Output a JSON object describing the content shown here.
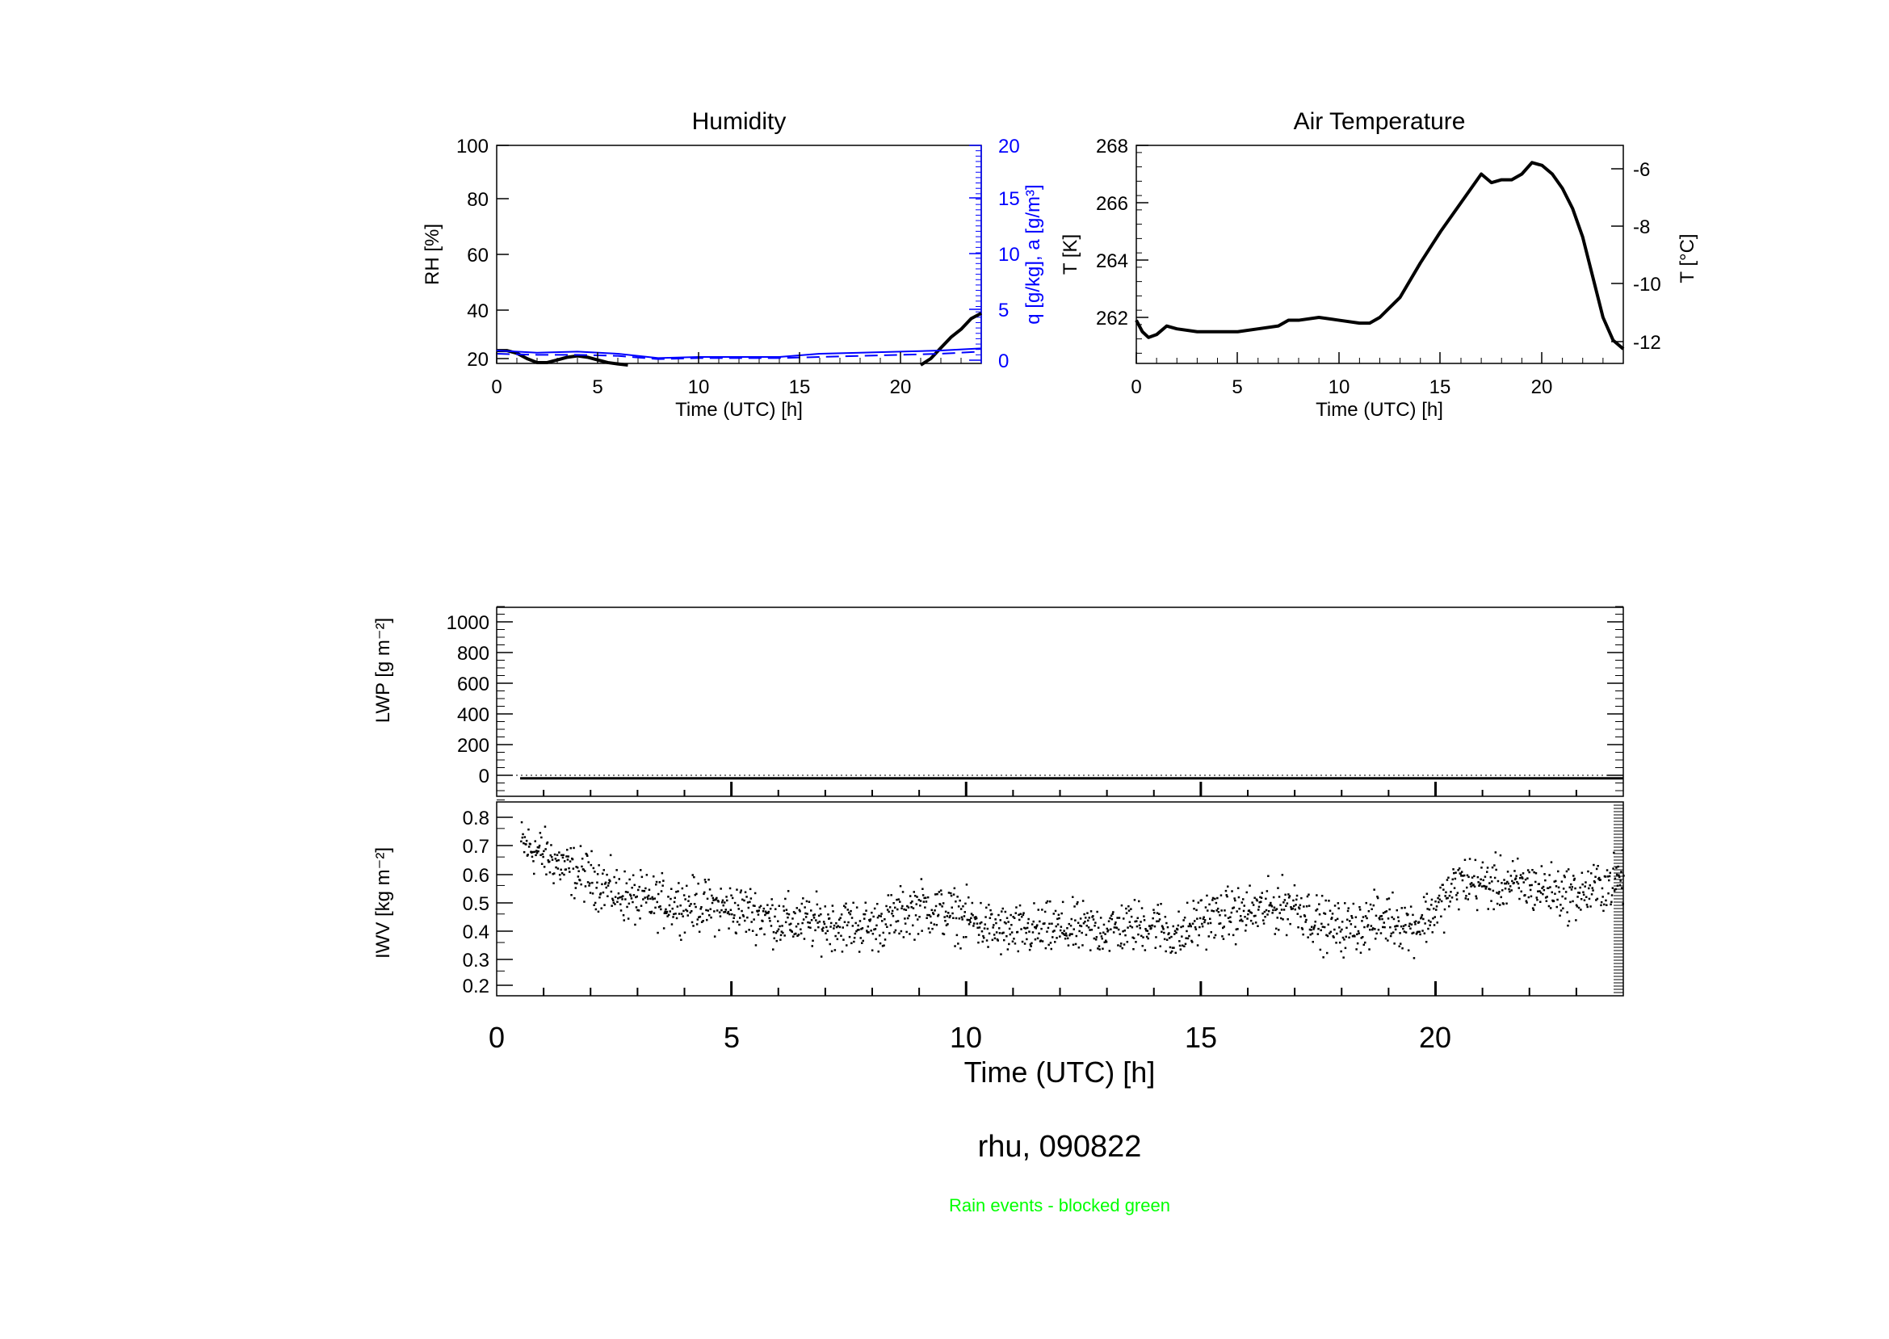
{
  "footer": {
    "site_date": "rhu, 090822",
    "rain_note": "Rain events - blocked green"
  },
  "colors": {
    "axis": "#000000",
    "secondary_axis": "#0000ff",
    "rain_note": "#00ff00"
  },
  "chart_data": [
    {
      "id": "humidity",
      "type": "line",
      "title": "Humidity",
      "xlabel": "Time (UTC) [h]",
      "ylabel": "RH [%]",
      "ylabel_right": "q [g/kg], a [g/m³]",
      "xlim": [
        0,
        24
      ],
      "ylim": [
        18,
        100
      ],
      "ylim_right": [
        0,
        20
      ],
      "x_ticks": [
        "0",
        "5",
        "10",
        "15",
        "20"
      ],
      "y_ticks": [
        "20",
        "40",
        "60",
        "80",
        "100"
      ],
      "y_ticks_right": [
        "0",
        "5",
        "10",
        "15",
        "20"
      ],
      "series": [
        {
          "axis": "left",
          "color": "#000000",
          "style": "solid",
          "x": [
            0,
            0.5,
            1,
            1.5,
            2,
            2.5,
            3,
            3.5,
            4,
            4.5,
            5,
            5.5,
            6,
            6.5,
            21,
            21.5,
            22,
            22.5,
            23,
            23.5,
            24
          ],
          "values": [
            23,
            23,
            22,
            20,
            18.5,
            18.5,
            19.5,
            20.5,
            21,
            20.5,
            19.5,
            18.5,
            18,
            17.5,
            17.5,
            20,
            24,
            28,
            31,
            35,
            37
          ]
        },
        {
          "axis": "right",
          "color": "#0000ff",
          "style": "solid",
          "x": [
            0,
            2,
            4,
            6,
            8,
            10,
            12,
            14,
            16,
            18,
            20,
            22,
            24
          ],
          "values": [
            0.9,
            0.7,
            0.8,
            0.6,
            0.2,
            0.3,
            0.3,
            0.3,
            0.6,
            0.7,
            0.8,
            0.9,
            1.1
          ]
        },
        {
          "axis": "right",
          "color": "#0000ff",
          "style": "dashed",
          "x": [
            0,
            2,
            4,
            6,
            8,
            10,
            12,
            14,
            16,
            18,
            20,
            22,
            24
          ],
          "values": [
            0.6,
            0.5,
            0.5,
            0.4,
            0.1,
            0.2,
            0.2,
            0.2,
            0.3,
            0.4,
            0.5,
            0.6,
            0.8
          ]
        }
      ]
    },
    {
      "id": "air_temperature",
      "type": "line",
      "title": "Air Temperature",
      "xlabel": "Time (UTC) [h]",
      "ylabel": "T [K]",
      "ylabel_right": "T [°C]",
      "xlim": [
        0,
        24
      ],
      "ylim": [
        260.6,
        268.2
      ],
      "ylim_right": [
        -12.55,
        -4.95
      ],
      "x_ticks": [
        "0",
        "5",
        "10",
        "15",
        "20"
      ],
      "y_ticks": [
        "262",
        "264",
        "266",
        "268"
      ],
      "y_ticks_right": [
        "-12",
        "-10",
        "-8",
        "-6"
      ],
      "series": [
        {
          "axis": "left",
          "color": "#000000",
          "style": "solid",
          "x": [
            0,
            0.3,
            0.6,
            1,
            1.5,
            2,
            3,
            4,
            5,
            6,
            7,
            7.5,
            8,
            9,
            10,
            11,
            11.5,
            12,
            13,
            14,
            15,
            16,
            16.5,
            17,
            17.5,
            18,
            18.5,
            19,
            19.5,
            20,
            20.5,
            21,
            21.5,
            22,
            22.5,
            23,
            23.5,
            24
          ],
          "values": [
            261.9,
            261.5,
            261.3,
            261.4,
            261.7,
            261.6,
            261.5,
            261.5,
            261.5,
            261.6,
            261.7,
            261.9,
            261.9,
            262.0,
            261.9,
            261.8,
            261.8,
            262.0,
            262.7,
            263.9,
            265.0,
            266.0,
            266.5,
            267.0,
            266.7,
            266.8,
            266.8,
            267.0,
            267.4,
            267.3,
            267.0,
            266.5,
            265.8,
            264.8,
            263.4,
            262.0,
            261.2,
            260.9
          ]
        }
      ]
    },
    {
      "id": "lwp",
      "type": "line",
      "ylabel": "LWP [g m⁻²]",
      "xlim": [
        0,
        24
      ],
      "ylim": [
        -100,
        1100
      ],
      "y_ticks": [
        "0",
        "200",
        "400",
        "600",
        "800",
        "1000"
      ],
      "series": [
        {
          "color": "#000000",
          "style": "solid",
          "x": [
            0.5,
            24
          ],
          "values": [
            -20,
            -20
          ]
        }
      ]
    },
    {
      "id": "iwv",
      "type": "scatter",
      "ylabel": "IWV [kg m⁻²]",
      "xlabel": "Time (UTC) [h]",
      "xlim": [
        0,
        24
      ],
      "ylim": [
        0.18,
        0.85
      ],
      "x_ticks": [
        "0",
        "5",
        "10",
        "15",
        "20"
      ],
      "y_ticks": [
        "0.2",
        "0.3",
        "0.4",
        "0.5",
        "0.6",
        "0.7",
        "0.8"
      ],
      "trend": {
        "x": [
          0.5,
          1,
          1.5,
          2,
          2.5,
          3,
          4,
          5,
          5.5,
          6,
          7,
          8,
          9,
          10,
          10.5,
          11,
          12,
          13,
          14,
          14.5,
          15,
          16,
          17,
          17.5,
          18,
          19,
          19.5,
          20,
          20.5,
          21,
          22,
          23,
          24
        ],
        "values": [
          0.7,
          0.66,
          0.61,
          0.58,
          0.53,
          0.5,
          0.49,
          0.47,
          0.46,
          0.43,
          0.42,
          0.41,
          0.48,
          0.44,
          0.4,
          0.39,
          0.4,
          0.4,
          0.42,
          0.37,
          0.44,
          0.46,
          0.49,
          0.42,
          0.4,
          0.44,
          0.41,
          0.47,
          0.57,
          0.56,
          0.55,
          0.52,
          0.58
        ]
      },
      "spread": 0.045,
      "n_points": 1800
    }
  ]
}
